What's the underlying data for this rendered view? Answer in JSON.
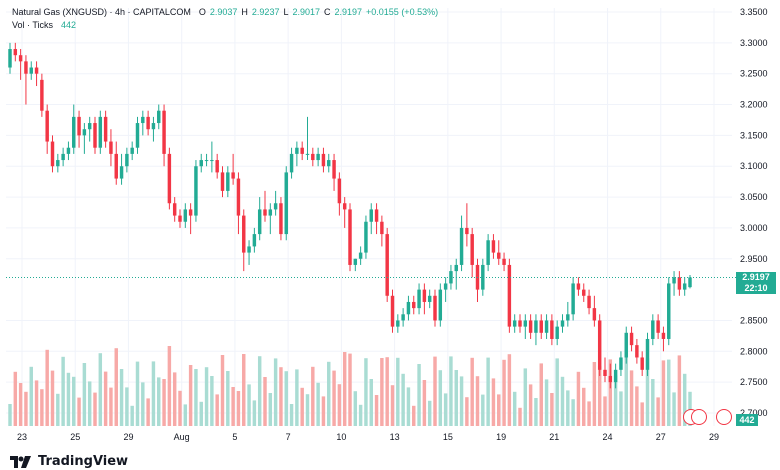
{
  "header": {
    "symbol": "Natural Gas (XNGUSD) · 4h · CAPITALCOM",
    "o_key": "O",
    "o": "2.9037",
    "h_key": "H",
    "h": "2.9237",
    "l_key": "L",
    "l": "2.9017",
    "c_key": "C",
    "c": "2.9197",
    "change": "+0.0155 (+0.53%)",
    "vol_label": "Vol · Ticks",
    "vol_value": "442"
  },
  "price_badge": {
    "price": "2.9197",
    "countdown": "22:10"
  },
  "vol_badge": "442",
  "brand": "TradingView",
  "colors": {
    "up": "#22ab94",
    "down": "#f23645",
    "up_vol": "#a9dcd3",
    "down_vol": "#f7a9a7",
    "grid": "#f0f3fa",
    "text": "#131722"
  },
  "chart_data": {
    "type": "candlestick",
    "series_name": "Natural Gas (XNGUSD)",
    "y_ticks": [
      "3.3500",
      "3.3000",
      "3.2500",
      "3.2000",
      "3.1500",
      "3.1000",
      "3.0500",
      "3.0000",
      "2.9500",
      "2.8500",
      "2.8000",
      "2.7500",
      "2.7000"
    ],
    "ylim": [
      2.7,
      3.35
    ],
    "x_ticks": [
      "23",
      "25",
      "29",
      "Aug",
      "5",
      "7",
      "10",
      "13",
      "15",
      "19",
      "21",
      "24",
      "27",
      "29"
    ],
    "last_price": 2.9197,
    "candles": [
      [
        3.26,
        3.3,
        3.25,
        3.29
      ],
      [
        3.29,
        3.3,
        3.27,
        3.28
      ],
      [
        3.28,
        3.29,
        3.24,
        3.27
      ],
      [
        3.27,
        3.28,
        3.2,
        3.25
      ],
      [
        3.25,
        3.27,
        3.24,
        3.26
      ],
      [
        3.26,
        3.27,
        3.23,
        3.25
      ],
      [
        3.24,
        3.25,
        3.18,
        3.19
      ],
      [
        3.19,
        3.2,
        3.12,
        3.14
      ],
      [
        3.14,
        3.15,
        3.09,
        3.1
      ],
      [
        3.1,
        3.12,
        3.09,
        3.11
      ],
      [
        3.11,
        3.13,
        3.1,
        3.12
      ],
      [
        3.12,
        3.14,
        3.11,
        3.13
      ],
      [
        3.13,
        3.2,
        3.12,
        3.18
      ],
      [
        3.18,
        3.19,
        3.13,
        3.15
      ],
      [
        3.15,
        3.17,
        3.12,
        3.16
      ],
      [
        3.16,
        3.18,
        3.14,
        3.17
      ],
      [
        3.17,
        3.18,
        3.12,
        3.13
      ],
      [
        3.13,
        3.19,
        3.12,
        3.18
      ],
      [
        3.18,
        3.19,
        3.13,
        3.14
      ],
      [
        3.14,
        3.16,
        3.1,
        3.12
      ],
      [
        3.12,
        3.14,
        3.07,
        3.08
      ],
      [
        3.08,
        3.12,
        3.07,
        3.1
      ],
      [
        3.1,
        3.13,
        3.09,
        3.12
      ],
      [
        3.12,
        3.14,
        3.11,
        3.13
      ],
      [
        3.13,
        3.18,
        3.12,
        3.17
      ],
      [
        3.17,
        3.19,
        3.15,
        3.18
      ],
      [
        3.18,
        3.19,
        3.15,
        3.16
      ],
      [
        3.16,
        3.18,
        3.14,
        3.17
      ],
      [
        3.17,
        3.2,
        3.16,
        3.19
      ],
      [
        3.19,
        3.2,
        3.1,
        3.12
      ],
      [
        3.12,
        3.13,
        3.03,
        3.04
      ],
      [
        3.04,
        3.05,
        3.01,
        3.02
      ],
      [
        3.02,
        3.03,
        3.0,
        3.01
      ],
      [
        3.01,
        3.04,
        3.0,
        3.03
      ],
      [
        3.03,
        3.04,
        2.99,
        3.02
      ],
      [
        3.02,
        3.11,
        3.01,
        3.1
      ],
      [
        3.1,
        3.12,
        3.09,
        3.11
      ],
      [
        3.11,
        3.12,
        3.1,
        3.11
      ],
      [
        3.11,
        3.14,
        3.09,
        3.11
      ],
      [
        3.11,
        3.12,
        3.08,
        3.09
      ],
      [
        3.09,
        3.1,
        3.05,
        3.06
      ],
      [
        3.06,
        3.1,
        3.05,
        3.09
      ],
      [
        3.09,
        3.12,
        3.07,
        3.08
      ],
      [
        3.08,
        3.09,
        2.99,
        3.02
      ],
      [
        3.02,
        3.03,
        2.93,
        2.96
      ],
      [
        2.96,
        2.98,
        2.94,
        2.97
      ],
      [
        2.97,
        3.0,
        2.96,
        2.99
      ],
      [
        2.99,
        3.05,
        2.98,
        3.03
      ],
      [
        3.03,
        3.06,
        3.01,
        3.02
      ],
      [
        3.02,
        3.04,
        2.99,
        3.03
      ],
      [
        3.03,
        3.06,
        3.02,
        3.04
      ],
      [
        3.04,
        3.05,
        2.98,
        2.99
      ],
      [
        2.99,
        3.1,
        2.98,
        3.09
      ],
      [
        3.09,
        3.13,
        3.08,
        3.12
      ],
      [
        3.12,
        3.14,
        3.1,
        3.13
      ],
      [
        3.13,
        3.14,
        3.11,
        3.12
      ],
      [
        3.12,
        3.18,
        3.11,
        3.12
      ],
      [
        3.12,
        3.13,
        3.1,
        3.11
      ],
      [
        3.11,
        3.13,
        3.1,
        3.12
      ],
      [
        3.12,
        3.13,
        3.09,
        3.1
      ],
      [
        3.1,
        3.12,
        3.09,
        3.11
      ],
      [
        3.11,
        3.12,
        3.06,
        3.08
      ],
      [
        3.08,
        3.09,
        3.02,
        3.04
      ],
      [
        3.04,
        3.05,
        3.0,
        3.03
      ],
      [
        3.03,
        3.04,
        2.93,
        2.94
      ],
      [
        2.94,
        2.95,
        2.93,
        2.95
      ],
      [
        2.95,
        2.97,
        2.94,
        2.96
      ],
      [
        2.96,
        3.02,
        2.95,
        3.01
      ],
      [
        3.01,
        3.04,
        2.99,
        3.03
      ],
      [
        3.03,
        3.04,
        2.99,
        3.01
      ],
      [
        3.01,
        3.02,
        2.97,
        2.99
      ],
      [
        2.99,
        3.0,
        2.88,
        2.89
      ],
      [
        2.89,
        2.9,
        2.83,
        2.84
      ],
      [
        2.84,
        2.86,
        2.83,
        2.85
      ],
      [
        2.85,
        2.87,
        2.84,
        2.86
      ],
      [
        2.86,
        2.89,
        2.85,
        2.88
      ],
      [
        2.88,
        2.89,
        2.86,
        2.87
      ],
      [
        2.87,
        2.91,
        2.86,
        2.9
      ],
      [
        2.9,
        2.91,
        2.86,
        2.88
      ],
      [
        2.88,
        2.9,
        2.87,
        2.89
      ],
      [
        2.89,
        2.9,
        2.84,
        2.85
      ],
      [
        2.85,
        2.91,
        2.84,
        2.9
      ],
      [
        2.9,
        2.92,
        2.88,
        2.91
      ],
      [
        2.91,
        2.94,
        2.9,
        2.93
      ],
      [
        2.93,
        2.95,
        2.9,
        2.94
      ],
      [
        2.94,
        3.02,
        2.93,
        3.0
      ],
      [
        3.0,
        3.04,
        2.97,
        2.99
      ],
      [
        2.99,
        3.0,
        2.92,
        2.94
      ],
      [
        2.94,
        2.95,
        2.88,
        2.9
      ],
      [
        2.9,
        2.95,
        2.89,
        2.94
      ],
      [
        2.94,
        2.99,
        2.93,
        2.98
      ],
      [
        2.98,
        2.99,
        2.95,
        2.96
      ],
      [
        2.96,
        2.98,
        2.94,
        2.95
      ],
      [
        2.95,
        2.96,
        2.93,
        2.94
      ],
      [
        2.94,
        2.95,
        2.83,
        2.84
      ],
      [
        2.84,
        2.86,
        2.83,
        2.85
      ],
      [
        2.85,
        2.86,
        2.83,
        2.84
      ],
      [
        2.84,
        2.86,
        2.82,
        2.85
      ],
      [
        2.85,
        2.86,
        2.82,
        2.83
      ],
      [
        2.83,
        2.86,
        2.81,
        2.85
      ],
      [
        2.85,
        2.86,
        2.82,
        2.83
      ],
      [
        2.83,
        2.86,
        2.82,
        2.85
      ],
      [
        2.85,
        2.86,
        2.81,
        2.82
      ],
      [
        2.82,
        2.85,
        2.81,
        2.84
      ],
      [
        2.84,
        2.86,
        2.83,
        2.85
      ],
      [
        2.85,
        2.88,
        2.84,
        2.86
      ],
      [
        2.86,
        2.92,
        2.85,
        2.91
      ],
      [
        2.91,
        2.92,
        2.89,
        2.9
      ],
      [
        2.9,
        2.91,
        2.88,
        2.89
      ],
      [
        2.89,
        2.9,
        2.86,
        2.87
      ],
      [
        2.87,
        2.89,
        2.84,
        2.85
      ],
      [
        2.85,
        2.86,
        2.76,
        2.77
      ],
      [
        2.77,
        2.79,
        2.75,
        2.76
      ],
      [
        2.76,
        2.78,
        2.74,
        2.75
      ],
      [
        2.75,
        2.78,
        2.74,
        2.77
      ],
      [
        2.77,
        2.8,
        2.76,
        2.79
      ],
      [
        2.79,
        2.84,
        2.78,
        2.83
      ],
      [
        2.83,
        2.84,
        2.8,
        2.81
      ],
      [
        2.81,
        2.82,
        2.78,
        2.79
      ],
      [
        2.79,
        2.8,
        2.76,
        2.77
      ],
      [
        2.77,
        2.83,
        2.76,
        2.82
      ],
      [
        2.82,
        2.86,
        2.81,
        2.85
      ],
      [
        2.85,
        2.86,
        2.82,
        2.83
      ],
      [
        2.83,
        2.84,
        2.8,
        2.82
      ],
      [
        2.82,
        2.92,
        2.81,
        2.91
      ],
      [
        2.91,
        2.93,
        2.89,
        2.92
      ],
      [
        2.92,
        2.93,
        2.89,
        2.9
      ],
      [
        2.9,
        2.92,
        2.89,
        2.91
      ],
      [
        2.904,
        2.9237,
        2.902,
        2.9197
      ]
    ]
  }
}
